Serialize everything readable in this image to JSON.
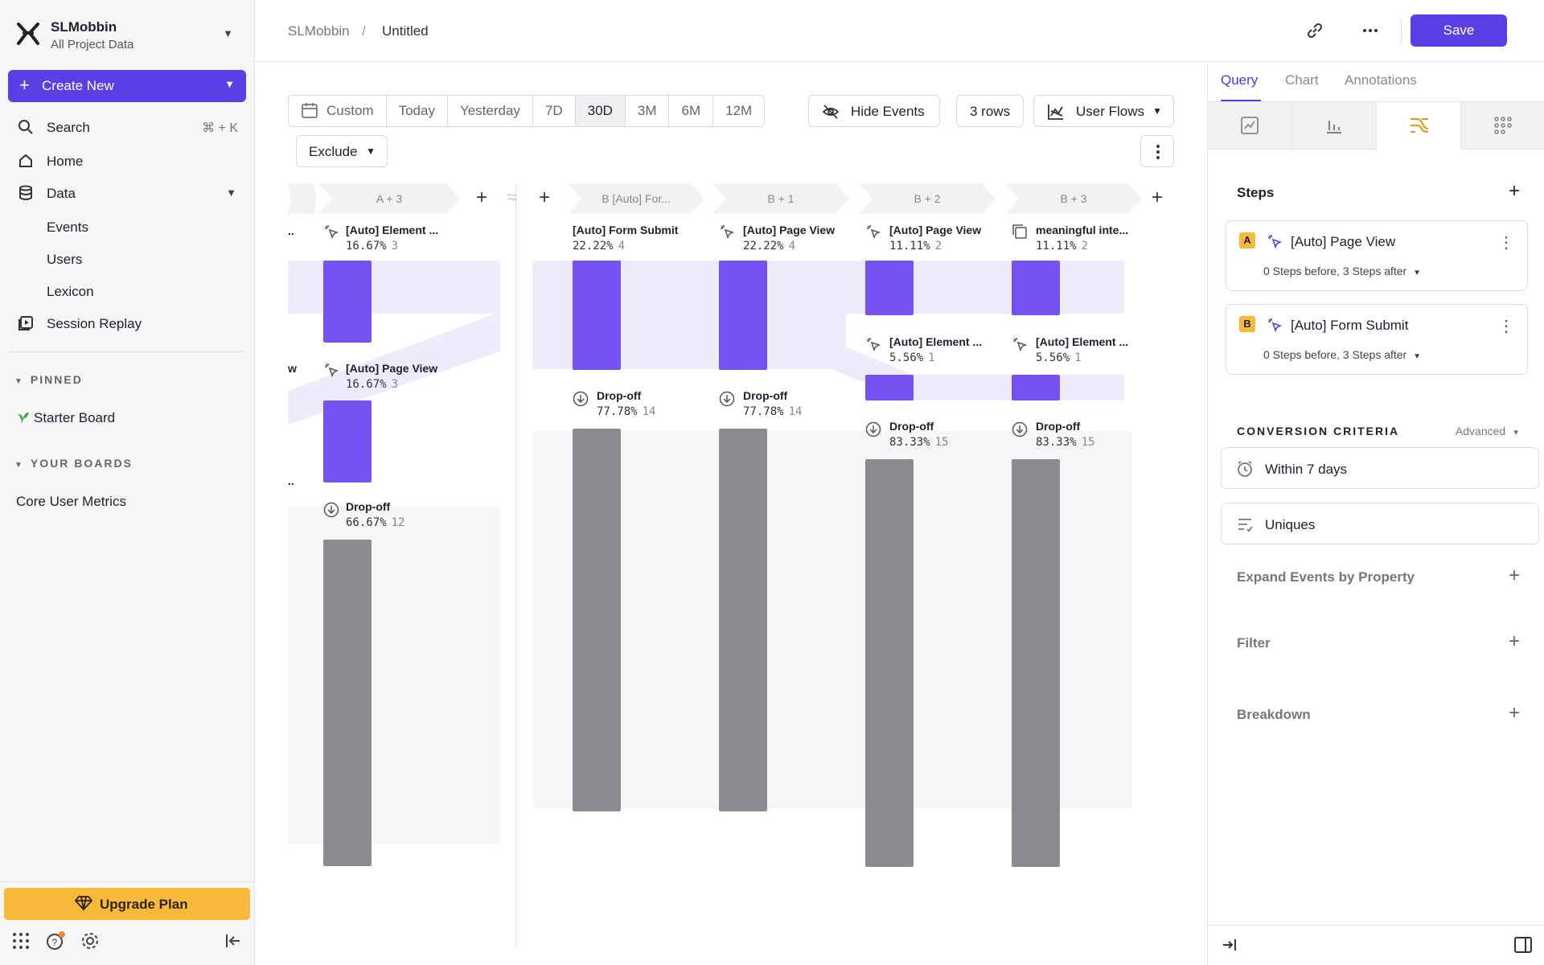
{
  "workspace": {
    "name": "SLMobbin",
    "subtitle": "All Project Data"
  },
  "sidebar": {
    "create_label": "Create New",
    "search_label": "Search",
    "search_shortcut": "⌘ + K",
    "home_label": "Home",
    "data_label": "Data",
    "data_items": [
      "Events",
      "Users",
      "Lexicon"
    ],
    "session_replay_label": "Session Replay",
    "pinned_label": "PINNED",
    "pinned_items": [
      "Starter Board"
    ],
    "boards_label": "YOUR BOARDS",
    "board_items": [
      "Core User Metrics"
    ],
    "upgrade_label": "Upgrade Plan"
  },
  "header": {
    "breadcrumb_root": "SLMobbin",
    "breadcrumb_sep": "/",
    "breadcrumb_current": "Untitled",
    "save_label": "Save"
  },
  "toolbar": {
    "date_ranges": [
      "Custom",
      "Today",
      "Yesterday",
      "7D",
      "30D",
      "3M",
      "6M",
      "12M"
    ],
    "active_range": "30D",
    "hide_events_label": "Hide Events",
    "rows_label": "3 rows",
    "chart_type_label": "User Flows",
    "exclude_label": "Exclude"
  },
  "flow": {
    "columns": [
      {
        "header": "A + 3",
        "nodes": [
          {
            "label": "[Auto] Element ...",
            "pct": "16.67%",
            "count": "3"
          },
          {
            "label": "[Auto] Page View",
            "pct": "16.67%",
            "count": "3"
          },
          {
            "label": "Drop-off",
            "pct": "66.67%",
            "count": "12"
          }
        ]
      },
      {
        "header": "B [Auto] For...",
        "nodes": [
          {
            "label": "[Auto] Form Submit",
            "pct": "22.22%",
            "count": "4"
          },
          {
            "label": "Drop-off",
            "pct": "77.78%",
            "count": "14"
          }
        ]
      },
      {
        "header": "B + 1",
        "nodes": [
          {
            "label": "[Auto] Page View",
            "pct": "22.22%",
            "count": "4"
          },
          {
            "label": "Drop-off",
            "pct": "77.78%",
            "count": "14"
          }
        ]
      },
      {
        "header": "B + 2",
        "nodes": [
          {
            "label": "[Auto] Page View",
            "pct": "11.11%",
            "count": "2"
          },
          {
            "label": "[Auto] Element ...",
            "pct": "5.56%",
            "count": "1"
          },
          {
            "label": "Drop-off",
            "pct": "83.33%",
            "count": "15"
          }
        ]
      },
      {
        "header": "B + 3",
        "nodes": [
          {
            "label": "meaningful inte...",
            "pct": "11.11%",
            "count": "2"
          },
          {
            "label": "[Auto] Element ...",
            "pct": "5.56%",
            "count": "1"
          },
          {
            "label": "Drop-off",
            "pct": "83.33%",
            "count": "15"
          }
        ]
      }
    ],
    "left_cut_label_1": "..",
    "left_cut_label_2": "w",
    "left_cut_label_3": ".."
  },
  "panel": {
    "tabs": [
      "Query",
      "Chart",
      "Annotations"
    ],
    "active_tab": "Query",
    "steps_label": "Steps",
    "steps": [
      {
        "badge": "A",
        "event": "[Auto] Page View",
        "detail": "0 Steps before, 3 Steps after"
      },
      {
        "badge": "B",
        "event": "[Auto] Form Submit",
        "detail": "0 Steps before, 3 Steps after"
      }
    ],
    "conversion_label": "CONVERSION CRITERIA",
    "advanced_label": "Advanced",
    "within_label": "Within 7 days",
    "uniques_label": "Uniques",
    "expand_label": "Expand Events by Property",
    "filter_label": "Filter",
    "breakdown_label": "Breakdown"
  },
  "colors": {
    "accent": "#5a3fe6",
    "flow_bar": "#7752f2",
    "dropoff_bar": "#8c8c90",
    "upgrade": "#f8b83a"
  }
}
